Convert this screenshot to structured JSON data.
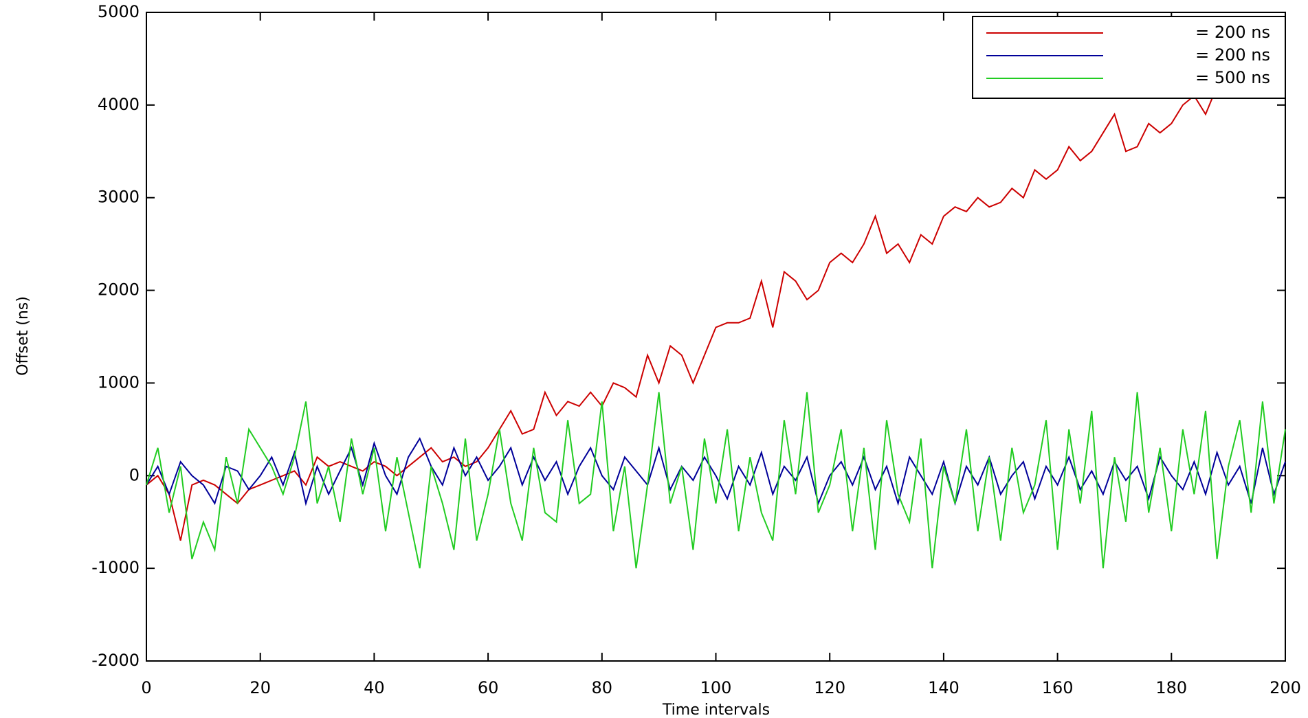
{
  "chart_data": {
    "type": "line",
    "xlabel": "Time intervals",
    "ylabel": "Offset (ns)",
    "x": [
      0,
      2,
      4,
      6,
      8,
      10,
      12,
      14,
      16,
      18,
      20,
      22,
      24,
      26,
      28,
      30,
      32,
      34,
      36,
      38,
      40,
      42,
      44,
      46,
      48,
      50,
      52,
      54,
      56,
      58,
      60,
      62,
      64,
      66,
      68,
      70,
      72,
      74,
      76,
      78,
      80,
      82,
      84,
      86,
      88,
      90,
      92,
      94,
      96,
      98,
      100,
      102,
      104,
      106,
      108,
      110,
      112,
      114,
      116,
      118,
      120,
      122,
      124,
      126,
      128,
      130,
      132,
      134,
      136,
      138,
      140,
      142,
      144,
      146,
      148,
      150,
      152,
      154,
      156,
      158,
      160,
      162,
      164,
      166,
      168,
      170,
      172,
      174,
      176,
      178,
      180,
      182,
      184,
      186,
      188,
      190,
      192,
      194,
      196,
      198,
      200
    ],
    "series": [
      {
        "name": "= 200 ns",
        "color": "#cc0000",
        "values": [
          -100,
          0,
          -200,
          -700,
          -100,
          -50,
          -100,
          -200,
          -300,
          -150,
          -100,
          -50,
          0,
          50,
          -100,
          200,
          100,
          150,
          100,
          50,
          150,
          100,
          0,
          100,
          200,
          300,
          150,
          200,
          100,
          150,
          300,
          500,
          700,
          450,
          500,
          900,
          650,
          800,
          750,
          900,
          750,
          1000,
          950,
          850,
          1300,
          1000,
          1400,
          1300,
          1000,
          1300,
          1600,
          1650,
          1650,
          1700,
          2100,
          1600,
          2200,
          2100,
          1900,
          2000,
          2300,
          2400,
          2300,
          2500,
          2800,
          2400,
          2500,
          2300,
          2600,
          2500,
          2800,
          2900,
          2850,
          3000,
          2900,
          2950,
          3100,
          3000,
          3300,
          3200,
          3300,
          3550,
          3400,
          3500,
          3700,
          3900,
          3500,
          3550,
          3800,
          3700,
          3800,
          4000,
          4100,
          3900,
          4200,
          4300,
          4200,
          4100,
          4400,
          4500,
          4200
        ]
      },
      {
        "name": "= 200 ns",
        "color": "#000099",
        "values": [
          -100,
          100,
          -200,
          150,
          0,
          -100,
          -300,
          100,
          50,
          -150,
          0,
          200,
          -100,
          250,
          -300,
          100,
          -200,
          50,
          300,
          -100,
          350,
          0,
          -200,
          200,
          400,
          100,
          -100,
          300,
          0,
          200,
          -50,
          100,
          300,
          -100,
          200,
          -50,
          150,
          -200,
          100,
          300,
          0,
          -150,
          200,
          50,
          -100,
          300,
          -150,
          100,
          -50,
          200,
          0,
          -250,
          100,
          -100,
          250,
          -200,
          100,
          -50,
          200,
          -300,
          0,
          150,
          -100,
          200,
          -150,
          100,
          -300,
          200,
          0,
          -200,
          150,
          -300,
          100,
          -100,
          200,
          -200,
          0,
          150,
          -250,
          100,
          -100,
          200,
          -150,
          50,
          -200,
          150,
          -50,
          100,
          -250,
          200,
          0,
          -150,
          150,
          -200,
          250,
          -100,
          100,
          -300,
          300,
          -200,
          150
        ]
      },
      {
        "name": "= 500 ns",
        "color": "#22cc22",
        "values": [
          -100,
          300,
          -400,
          100,
          -900,
          -500,
          -800,
          200,
          -300,
          500,
          300,
          100,
          -200,
          200,
          800,
          -300,
          100,
          -500,
          400,
          -200,
          300,
          -600,
          200,
          -400,
          -1000,
          100,
          -300,
          -800,
          400,
          -700,
          -200,
          500,
          -300,
          -700,
          300,
          -400,
          -500,
          600,
          -300,
          -200,
          800,
          -600,
          100,
          -1000,
          -100,
          900,
          -300,
          100,
          -800,
          400,
          -300,
          500,
          -600,
          200,
          -400,
          -700,
          600,
          -200,
          900,
          -400,
          -100,
          500,
          -600,
          300,
          -800,
          600,
          -200,
          -500,
          400,
          -1000,
          100,
          -300,
          500,
          -600,
          200,
          -700,
          300,
          -400,
          -100,
          600,
          -800,
          500,
          -300,
          700,
          -1000,
          200,
          -500,
          900,
          -400,
          300,
          -600,
          500,
          -200,
          700,
          -900,
          100,
          600,
          -400,
          800,
          -300,
          500
        ]
      }
    ],
    "xlim": [
      0,
      200
    ],
    "xticks": [
      0,
      20,
      40,
      60,
      80,
      100,
      120,
      140,
      160,
      180,
      200
    ],
    "ylim": [
      -2000,
      5000
    ],
    "yticks": [
      -2000,
      -1000,
      0,
      1000,
      2000,
      3000,
      4000,
      5000
    ],
    "legend": "upper right"
  }
}
